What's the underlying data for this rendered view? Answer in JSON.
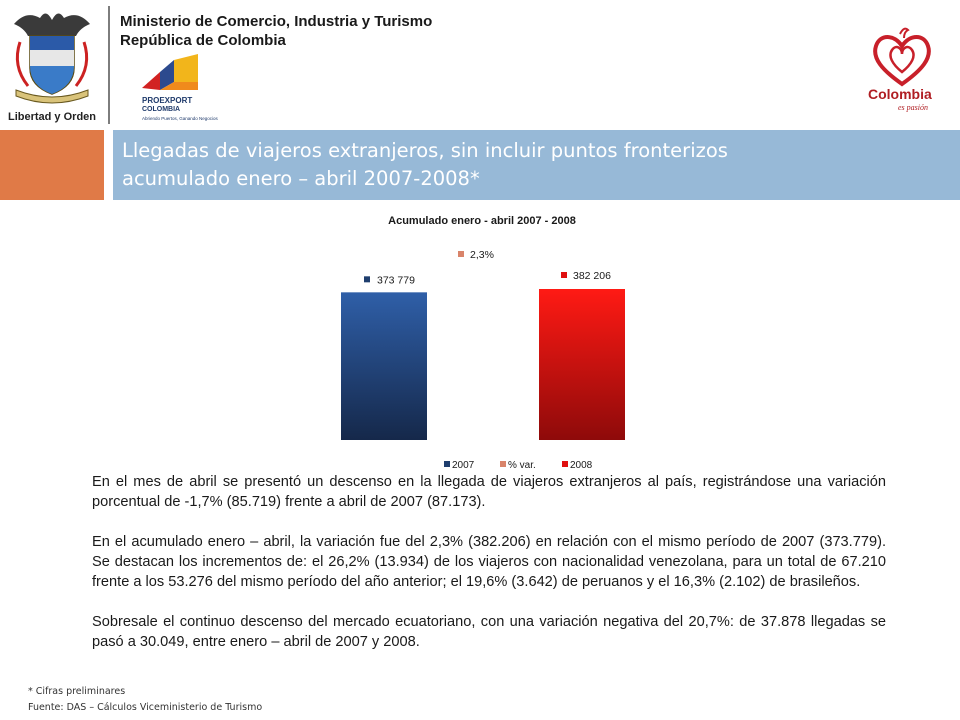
{
  "header": {
    "ministry_line1": "Ministerio de Comercio, Industria y Turismo",
    "ministry_line2": "República de Colombia",
    "crest_motto": "Libertad y Orden",
    "proexport_name": "PROEXPORT",
    "proexport_sub": "COLOMBIA",
    "proexport_tagline": "Abriendo Puertos, Ganando Negocios",
    "colombia_logo_name": "Colombia",
    "colombia_logo_tagline": "es pasión"
  },
  "title": {
    "line1": "Llegadas de viajeros extranjeros, sin incluir puntos fronterizos",
    "line2": "acumulado enero – abril 2007-2008*"
  },
  "colors": {
    "bar_2007": "#1f3e6e",
    "bar_2008": "#e0100f",
    "var_marker": "#d9846a",
    "orange_box": "#e07a47",
    "title_bar": "#97b9d7"
  },
  "chart_data": {
    "type": "bar",
    "title": "Acumulado enero - abril 2007 - 2008",
    "series": [
      {
        "name": "2007",
        "values": [
          373779
        ],
        "label": "373 779"
      },
      {
        "name": "% var.",
        "values": [
          2.3
        ],
        "label": "2,3%"
      },
      {
        "name": "2008",
        "values": [
          382206
        ],
        "label": "382 206"
      }
    ],
    "legend": [
      "2007",
      "% var.",
      "2008"
    ],
    "legend_position": "bottom",
    "grid": false
  },
  "body": {
    "p1": "En el mes de abril se presentó un descenso en la llegada de viajeros extranjeros al país, registrándose una variación porcentual de -1,7% (85.719) frente a abril de 2007 (87.173).",
    "p2": "En el acumulado enero – abril, la variación fue del 2,3% (382.206) en relación con el mismo período de 2007 (373.779). Se destacan los incrementos de: el 26,2% (13.934) de los viajeros con nacionalidad venezolana, para un total de 67.210 frente a los 53.276 del mismo período del año anterior; el 19,6% (3.642) de peruanos y el 16,3% (2.102) de brasileños.",
    "p3": "Sobresale el continuo descenso del mercado ecuatoriano, con una variación negativa del 20,7%: de 37.878 llegadas se pasó a 30.049, entre enero – abril de 2007 y 2008."
  },
  "footnotes": {
    "note": "* Cifras preliminares",
    "source": "Fuente: DAS – Cálculos Viceministerio de Turismo"
  }
}
